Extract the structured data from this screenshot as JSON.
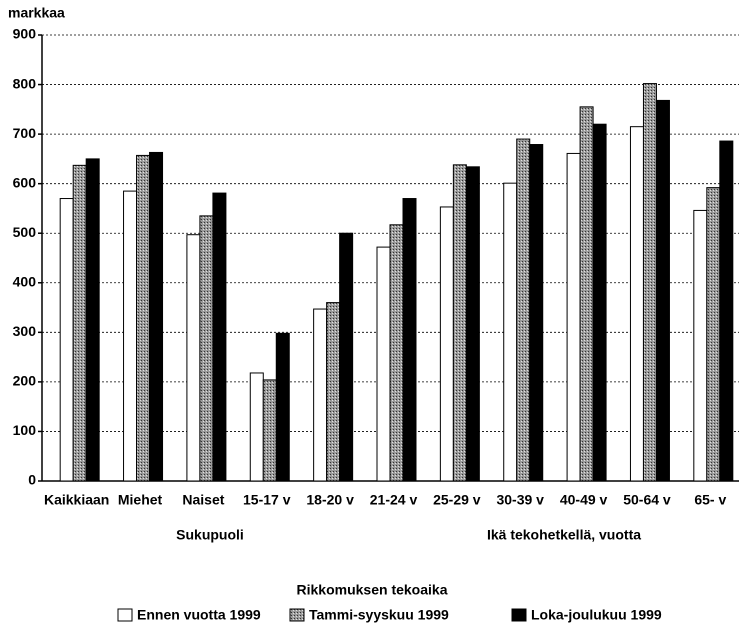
{
  "chart_data": {
    "type": "bar",
    "y_label": "markkaa",
    "categories": [
      "Kaikkiaan",
      "Miehet",
      "Naiset",
      "15-17 v",
      "18-20 v",
      "21-24 v",
      "25-29 v",
      "30-39 v",
      "40-49 v",
      "50-64 v",
      "65- v"
    ],
    "group_labels": [
      "Sukupuoli",
      "Ikä tekohetkellä, vuotta"
    ],
    "legend_title": "Rikkomuksen tekoaika",
    "series": [
      {
        "name": "Ennen vuotta 1999",
        "color": "#ffffff",
        "values": [
          570,
          585,
          497,
          218,
          347,
          472,
          553,
          601,
          661,
          715,
          546
        ]
      },
      {
        "name": "Tammi-syyskuu 1999",
        "color": "#9a9a9a",
        "values": [
          637,
          657,
          535,
          204,
          360,
          517,
          638,
          690,
          755,
          802,
          592
        ]
      },
      {
        "name": "Loka-joulukuu 1999",
        "color": "#000000",
        "values": [
          650,
          663,
          581,
          298,
          500,
          570,
          634,
          679,
          720,
          768,
          686
        ]
      }
    ],
    "ylim": [
      0,
      900
    ],
    "yticks": [
      0,
      100,
      200,
      300,
      400,
      500,
      600,
      700,
      800,
      900
    ],
    "grid": true
  }
}
